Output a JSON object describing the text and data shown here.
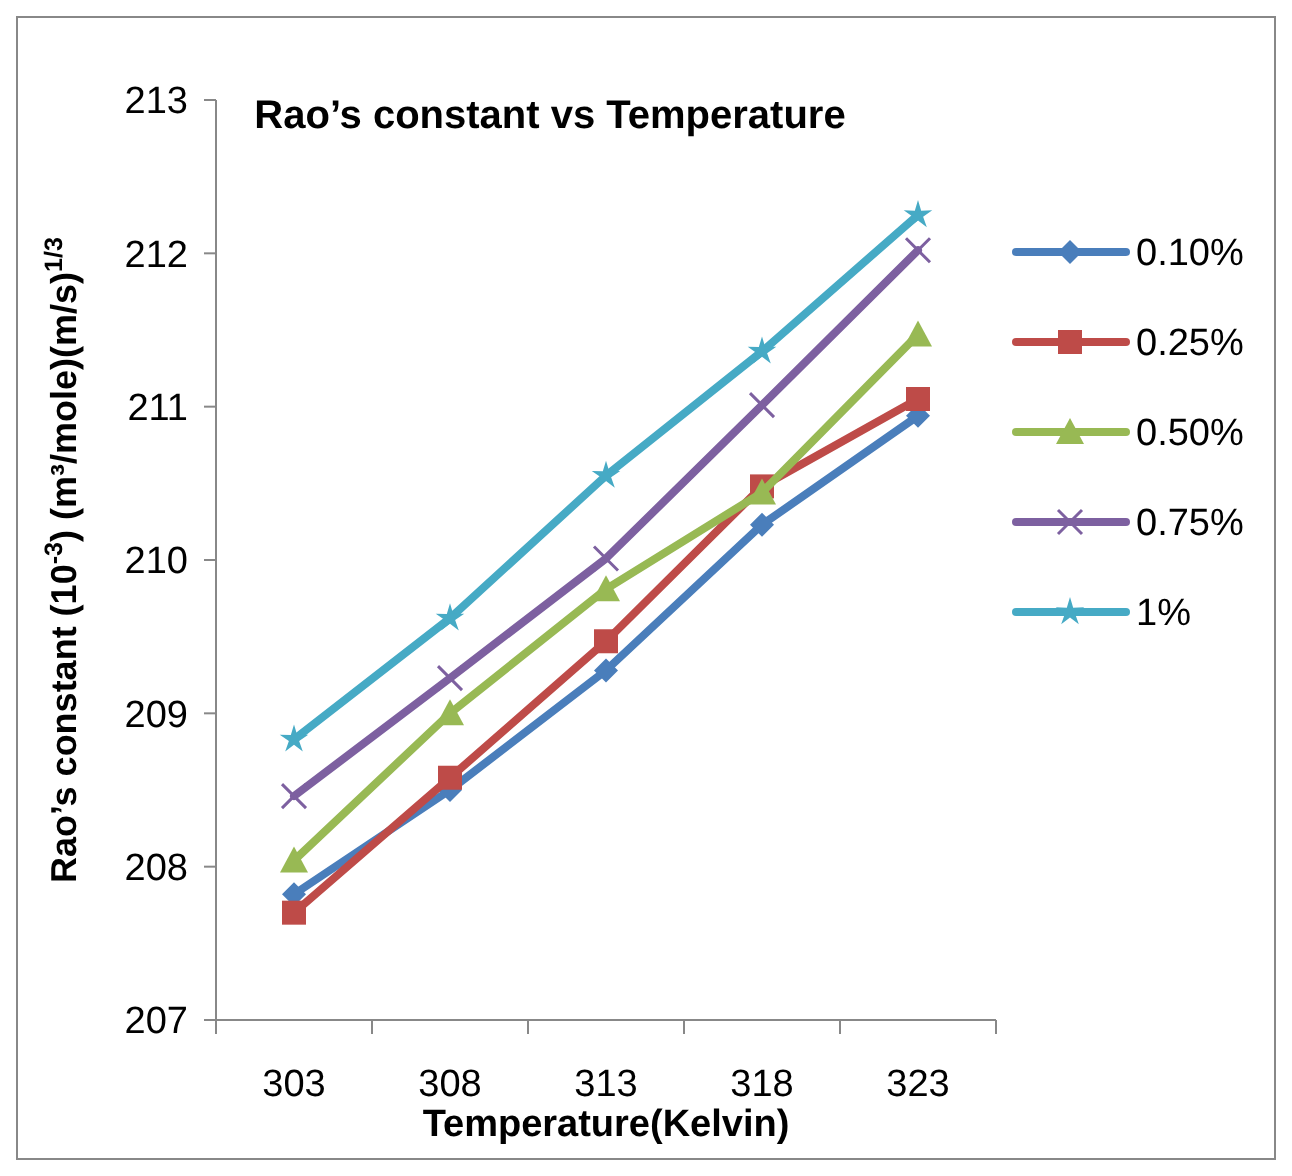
{
  "chart_data": {
    "type": "line",
    "title": "Rao’s constant  vs Temperature",
    "xlabel": "Temperature(Kelvin)",
    "ylabel": "Rao’s constant (10$^{-3}$) (m³/mole)(m/s)$^{1/3}$",
    "categories": [
      "303",
      "308",
      "313",
      "318",
      "323"
    ],
    "series": [
      {
        "name": "0.10%",
        "color": "#4a7ebb",
        "marker": "diamond",
        "values": [
          207.82,
          208.5,
          209.28,
          210.23,
          210.94
        ]
      },
      {
        "name": "0.25%",
        "color": "#be4b48",
        "marker": "square",
        "values": [
          207.7,
          208.58,
          209.47,
          210.48,
          211.05
        ]
      },
      {
        "name": "0.50%",
        "color": "#98b954",
        "marker": "triangle",
        "values": [
          208.04,
          209.0,
          209.81,
          210.44,
          211.47
        ]
      },
      {
        "name": "0.75%",
        "color": "#7d60a0",
        "marker": "cross",
        "values": [
          208.46,
          209.23,
          210.01,
          211.01,
          212.02
        ]
      },
      {
        "name": "1%",
        "color": "#46aac5",
        "marker": "star",
        "values": [
          208.83,
          209.62,
          210.55,
          211.36,
          212.25
        ]
      }
    ],
    "ylim": [
      207,
      213
    ],
    "yticks": [
      207,
      208,
      209,
      210,
      211,
      212,
      213
    ],
    "grid": false,
    "legend": "right"
  }
}
